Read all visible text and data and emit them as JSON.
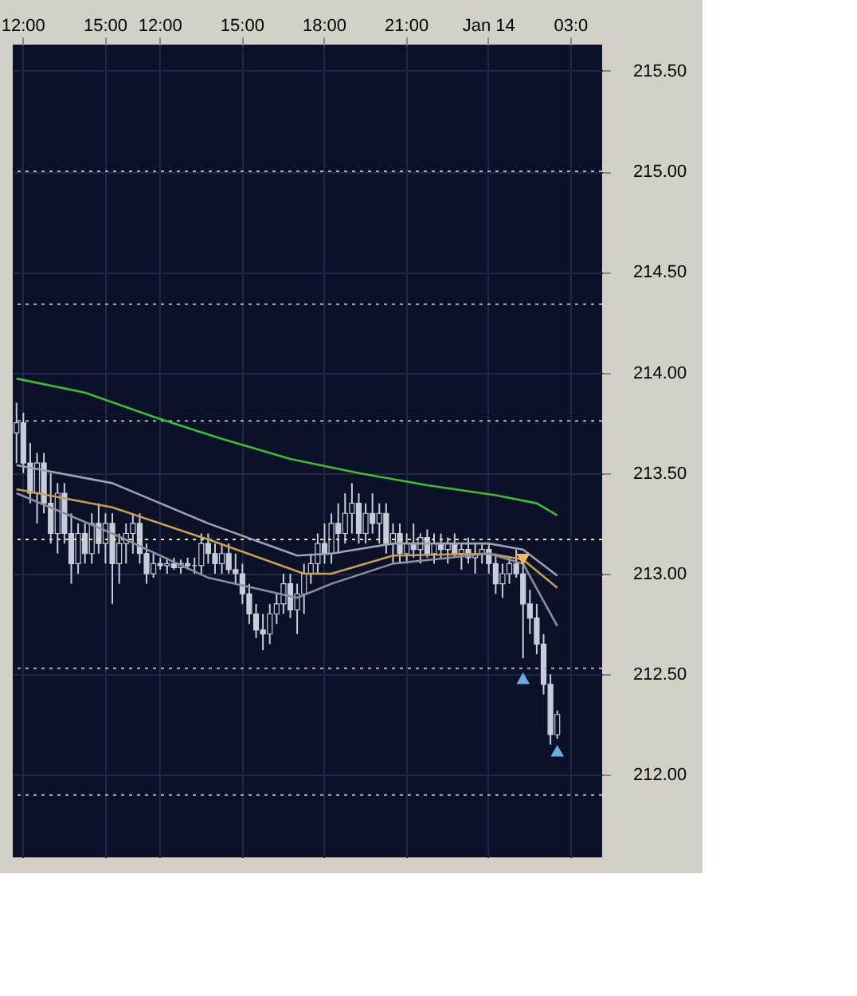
{
  "chart_data": {
    "type": "candlestick",
    "categories": [
      null,
      "12:00",
      null,
      null,
      null,
      null,
      null,
      null,
      null,
      null,
      null,
      null,
      null,
      "15:00",
      null,
      null,
      null,
      null,
      null,
      null,
      null,
      "12:00",
      null,
      null,
      null,
      null,
      null,
      null,
      null,
      null,
      null,
      null,
      null,
      "15:00",
      null,
      null,
      null,
      null,
      null,
      null,
      null,
      null,
      null,
      null,
      null,
      "18:00",
      null,
      null,
      null,
      null,
      null,
      null,
      null,
      null,
      null,
      null,
      null,
      "21:00",
      null,
      null,
      null,
      null,
      null,
      null,
      null,
      null,
      null,
      null,
      null,
      "Jan 14",
      null,
      null,
      null,
      null,
      null,
      null,
      null,
      null,
      null,
      null,
      null,
      "03:0",
      null,
      null,
      null,
      null
    ],
    "ohlc": [
      [
        213.7,
        213.85,
        213.55,
        213.75
      ],
      [
        213.75,
        213.8,
        213.5,
        213.55
      ],
      [
        213.55,
        213.65,
        213.35,
        213.4
      ],
      [
        213.4,
        213.6,
        213.25,
        213.55
      ],
      [
        213.55,
        213.6,
        213.3,
        213.35
      ],
      [
        213.35,
        213.5,
        213.15,
        213.2
      ],
      [
        213.2,
        213.45,
        213.1,
        213.4
      ],
      [
        213.4,
        213.45,
        213.15,
        213.2
      ],
      [
        213.2,
        213.3,
        212.95,
        213.05
      ],
      [
        213.05,
        213.25,
        213.0,
        213.2
      ],
      [
        213.2,
        213.25,
        213.05,
        213.1
      ],
      [
        213.1,
        213.3,
        213.05,
        213.25
      ],
      [
        213.25,
        213.35,
        213.1,
        213.15
      ],
      [
        213.15,
        213.3,
        213.05,
        213.25
      ],
      [
        213.25,
        213.3,
        212.85,
        213.05
      ],
      [
        213.05,
        213.2,
        212.95,
        213.15
      ],
      [
        213.15,
        213.25,
        213.05,
        213.2
      ],
      [
        213.2,
        213.3,
        213.1,
        213.25
      ],
      [
        213.25,
        213.3,
        213.05,
        213.1
      ],
      [
        213.1,
        213.15,
        212.95,
        213.0
      ],
      [
        213.0,
        213.1,
        212.98,
        213.05
      ],
      [
        213.05,
        213.08,
        213.02,
        213.04
      ],
      [
        213.04,
        213.08,
        213.0,
        213.05
      ],
      [
        213.05,
        213.08,
        213.02,
        213.03
      ],
      [
        213.03,
        213.07,
        213.0,
        213.05
      ],
      [
        213.05,
        213.08,
        213.02,
        213.04
      ],
      [
        213.04,
        213.08,
        213.0,
        213.04
      ],
      [
        213.04,
        213.2,
        213.0,
        213.15
      ],
      [
        213.15,
        213.2,
        213.05,
        213.1
      ],
      [
        213.1,
        213.15,
        213.0,
        213.05
      ],
      [
        213.05,
        213.15,
        213.0,
        213.1
      ],
      [
        213.1,
        213.15,
        213.0,
        213.02
      ],
      [
        213.02,
        213.1,
        212.95,
        213.0
      ],
      [
        213.0,
        213.05,
        212.85,
        212.9
      ],
      [
        212.9,
        212.95,
        212.75,
        212.8
      ],
      [
        212.8,
        212.85,
        212.68,
        212.72
      ],
      [
        212.72,
        212.8,
        212.62,
        212.7
      ],
      [
        212.7,
        212.85,
        212.65,
        212.8
      ],
      [
        212.8,
        212.9,
        212.75,
        212.85
      ],
      [
        212.85,
        213.0,
        212.8,
        212.95
      ],
      [
        212.95,
        213.0,
        212.78,
        212.82
      ],
      [
        212.82,
        212.95,
        212.7,
        212.9
      ],
      [
        212.9,
        213.05,
        212.8,
        213.0
      ],
      [
        213.0,
        213.1,
        212.95,
        213.05
      ],
      [
        213.05,
        213.2,
        213.0,
        213.15
      ],
      [
        213.15,
        213.25,
        213.05,
        213.1
      ],
      [
        213.1,
        213.3,
        213.05,
        213.25
      ],
      [
        213.25,
        213.35,
        213.1,
        213.2
      ],
      [
        213.2,
        213.4,
        213.15,
        213.3
      ],
      [
        213.3,
        213.45,
        213.2,
        213.35
      ],
      [
        213.35,
        213.4,
        213.15,
        213.2
      ],
      [
        213.2,
        213.35,
        213.15,
        213.3
      ],
      [
        213.3,
        213.4,
        213.2,
        213.25
      ],
      [
        213.25,
        213.35,
        213.15,
        213.3
      ],
      [
        213.3,
        213.35,
        213.1,
        213.15
      ],
      [
        213.15,
        213.25,
        213.05,
        213.2
      ],
      [
        213.2,
        213.25,
        213.05,
        213.1
      ],
      [
        213.1,
        213.2,
        213.05,
        213.15
      ],
      [
        213.15,
        213.25,
        213.08,
        213.12
      ],
      [
        213.12,
        213.2,
        213.05,
        213.18
      ],
      [
        213.18,
        213.22,
        213.08,
        213.1
      ],
      [
        213.1,
        213.2,
        213.05,
        213.15
      ],
      [
        213.15,
        213.2,
        213.08,
        213.12
      ],
      [
        213.12,
        213.18,
        213.05,
        213.15
      ],
      [
        213.15,
        213.2,
        213.08,
        213.1
      ],
      [
        213.1,
        213.15,
        213.02,
        213.12
      ],
      [
        213.12,
        213.18,
        213.05,
        213.08
      ],
      [
        213.08,
        213.15,
        213.0,
        213.1
      ],
      [
        213.1,
        213.15,
        213.05,
        213.12
      ],
      [
        213.12,
        213.15,
        213.0,
        213.05
      ],
      [
        213.05,
        213.1,
        212.9,
        212.95
      ],
      [
        212.95,
        213.05,
        212.88,
        213.0
      ],
      [
        213.0,
        213.08,
        212.95,
        213.05
      ],
      [
        213.05,
        213.12,
        212.98,
        213.0
      ],
      [
        213.0,
        213.05,
        212.58,
        212.85
      ],
      [
        212.85,
        212.92,
        212.7,
        212.78
      ],
      [
        212.78,
        212.85,
        212.6,
        212.65
      ],
      [
        212.65,
        212.7,
        212.4,
        212.45
      ],
      [
        212.45,
        212.5,
        212.15,
        212.2
      ],
      [
        212.2,
        212.32,
        212.18,
        212.3
      ],
      null,
      null,
      null,
      null,
      null,
      null
    ],
    "series": [
      {
        "type": "line",
        "color": "#3fbf2f",
        "values": [
          213.97,
          null,
          null,
          null,
          null,
          null,
          null,
          null,
          null,
          null,
          213.9,
          null,
          null,
          null,
          null,
          null,
          null,
          null,
          null,
          null,
          213.78,
          null,
          null,
          null,
          null,
          null,
          null,
          null,
          null,
          null,
          213.67,
          null,
          null,
          null,
          null,
          null,
          null,
          null,
          null,
          null,
          213.57,
          null,
          null,
          null,
          null,
          null,
          null,
          null,
          null,
          null,
          213.5,
          null,
          null,
          null,
          null,
          null,
          null,
          null,
          null,
          null,
          213.44,
          null,
          null,
          null,
          null,
          null,
          null,
          null,
          null,
          null,
          213.39,
          null,
          null,
          null,
          null,
          null,
          213.35,
          null,
          null,
          213.29,
          null,
          null,
          null,
          null,
          null,
          null
        ]
      },
      {
        "type": "line",
        "color": "#c8a050",
        "values": [
          213.42,
          null,
          null,
          null,
          null,
          null,
          null,
          null,
          null,
          null,
          null,
          null,
          null,
          null,
          213.33,
          null,
          null,
          null,
          null,
          null,
          null,
          null,
          null,
          null,
          null,
          null,
          null,
          null,
          213.17,
          null,
          null,
          null,
          null,
          null,
          null,
          null,
          null,
          null,
          null,
          null,
          null,
          null,
          213.0,
          null,
          null,
          null,
          213.0,
          null,
          null,
          null,
          null,
          null,
          null,
          null,
          null,
          213.09,
          null,
          null,
          null,
          null,
          null,
          null,
          null,
          null,
          null,
          null,
          null,
          null,
          null,
          213.1,
          null,
          null,
          null,
          null,
          213.07,
          null,
          null,
          null,
          null,
          212.93,
          null,
          null,
          null,
          null,
          null,
          null
        ]
      },
      {
        "type": "line",
        "color": "#9ea3b4",
        "values": [
          213.54,
          null,
          null,
          null,
          null,
          null,
          null,
          null,
          null,
          null,
          null,
          null,
          null,
          null,
          213.45,
          null,
          null,
          null,
          null,
          null,
          null,
          null,
          null,
          null,
          null,
          null,
          null,
          null,
          213.25,
          null,
          null,
          null,
          null,
          null,
          null,
          null,
          null,
          null,
          null,
          null,
          null,
          213.09,
          null,
          null,
          null,
          null,
          213.1,
          null,
          null,
          null,
          null,
          null,
          null,
          null,
          null,
          213.15,
          null,
          null,
          null,
          null,
          null,
          null,
          null,
          null,
          null,
          null,
          null,
          null,
          null,
          213.15,
          null,
          null,
          null,
          null,
          213.12,
          null,
          null,
          null,
          null,
          212.99,
          null,
          null,
          null,
          null,
          null,
          null
        ]
      },
      {
        "type": "line",
        "color": "#8a8fa0",
        "values": [
          213.4,
          null,
          null,
          null,
          null,
          null,
          null,
          null,
          null,
          null,
          null,
          null,
          null,
          null,
          213.2,
          null,
          null,
          null,
          null,
          null,
          null,
          null,
          null,
          null,
          null,
          null,
          null,
          null,
          212.98,
          null,
          null,
          null,
          null,
          null,
          null,
          null,
          null,
          null,
          null,
          null,
          null,
          212.88,
          null,
          null,
          null,
          null,
          212.95,
          null,
          null,
          null,
          null,
          null,
          null,
          null,
          null,
          213.05,
          null,
          null,
          null,
          null,
          null,
          null,
          null,
          null,
          null,
          null,
          null,
          null,
          null,
          213.1,
          null,
          null,
          null,
          null,
          213.05,
          null,
          null,
          null,
          null,
          212.74,
          null,
          null,
          null,
          null,
          null,
          null
        ]
      },
      {
        "type": "scatter",
        "marker": "triangle-down",
        "color": "#f5b860",
        "values": [
          null,
          null,
          null,
          null,
          null,
          null,
          null,
          null,
          null,
          null,
          null,
          null,
          null,
          null,
          null,
          null,
          null,
          null,
          null,
          null,
          null,
          null,
          null,
          null,
          null,
          null,
          null,
          null,
          null,
          null,
          null,
          null,
          null,
          null,
          null,
          null,
          null,
          null,
          null,
          null,
          null,
          null,
          null,
          null,
          null,
          null,
          null,
          null,
          null,
          null,
          null,
          null,
          null,
          null,
          null,
          null,
          null,
          null,
          null,
          null,
          null,
          null,
          null,
          null,
          null,
          null,
          null,
          null,
          null,
          null,
          null,
          null,
          null,
          null,
          213.07,
          null,
          null,
          null,
          null,
          null,
          null,
          null,
          null,
          null,
          null,
          null
        ]
      },
      {
        "type": "scatter",
        "marker": "triangle",
        "color": "#6aaee8",
        "values": [
          null,
          null,
          null,
          null,
          null,
          null,
          null,
          null,
          null,
          null,
          null,
          null,
          null,
          null,
          null,
          null,
          null,
          null,
          null,
          null,
          null,
          null,
          null,
          null,
          null,
          null,
          null,
          null,
          null,
          null,
          null,
          null,
          null,
          null,
          null,
          null,
          null,
          null,
          null,
          null,
          null,
          null,
          null,
          null,
          null,
          null,
          null,
          null,
          null,
          null,
          null,
          null,
          null,
          null,
          null,
          null,
          null,
          null,
          null,
          null,
          null,
          null,
          null,
          null,
          null,
          null,
          null,
          null,
          null,
          null,
          null,
          null,
          null,
          null,
          212.48,
          null,
          null,
          null,
          null,
          212.12,
          null,
          null,
          null,
          null,
          null,
          null
        ]
      }
    ],
    "ylim": [
      211.59,
      215.63
    ],
    "yticks": [
      {
        "value": 212.0,
        "label": "212.00"
      },
      {
        "value": 212.5,
        "label": "212.50"
      },
      {
        "value": 213.0,
        "label": "213.00"
      },
      {
        "value": 213.5,
        "label": "213.50"
      },
      {
        "value": 214.0,
        "label": "214.00"
      },
      {
        "value": 214.5,
        "label": "214.50"
      },
      {
        "value": 215.0,
        "label": "215.00"
      },
      {
        "value": 215.5,
        "label": "215.50"
      }
    ],
    "grid": true,
    "ref_lines": [
      {
        "axis": "y",
        "value": 213.17,
        "color": "#e8e0a0",
        "line_style": "dotted"
      },
      {
        "axis": "y",
        "value": 215.0,
        "color": "#b0b4c0",
        "line_style": "dotted"
      },
      {
        "axis": "y",
        "value": 214.34,
        "color": "#b0b4c0",
        "line_style": "dotted"
      },
      {
        "axis": "y",
        "value": 213.76,
        "color": "#b0b4c0",
        "line_style": "dotted"
      },
      {
        "axis": "y",
        "value": 212.53,
        "color": "#b0b4c0",
        "line_style": "dotted"
      },
      {
        "axis": "y",
        "value": 211.9,
        "color": "#b0b4c0",
        "line_style": "dotted"
      }
    ]
  }
}
